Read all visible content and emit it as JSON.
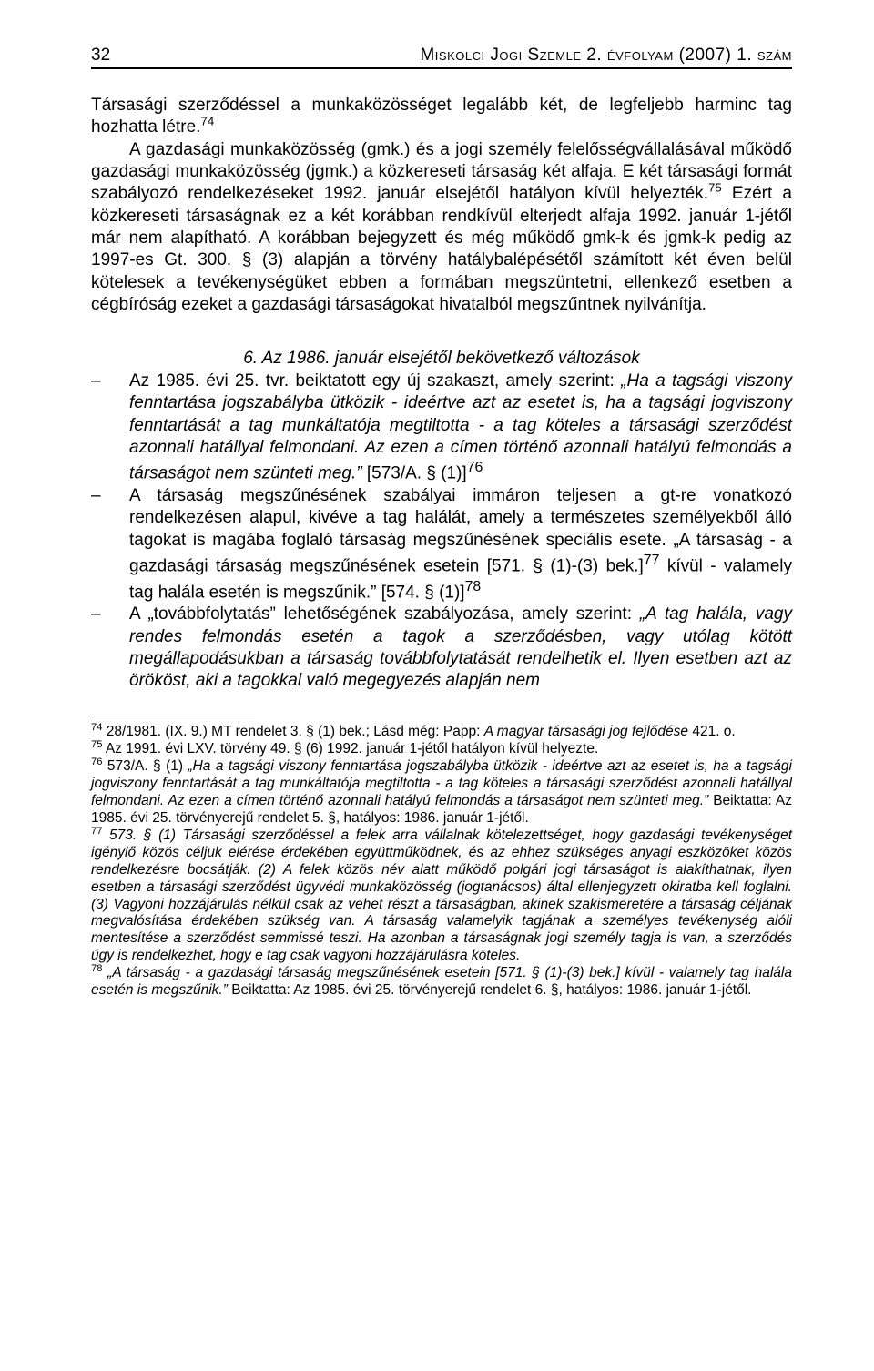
{
  "header": {
    "page_number": "32",
    "title": "Miskolci Jogi Szemle 2. évfolyam (2007) 1. szám"
  },
  "body": {
    "p1": "Társasági szerződéssel a munkaközösséget legalább két, de legfeljebb harminc tag hozhatta létre.",
    "p1_fn": "74",
    "p2": "A gazdasági munkaközösség (gmk.) és a jogi személy felelősségvállalásával működő gazdasági munkaközösség (jgmk.) a közkereseti társaság két alfaja. E két társasági formát szabályozó rendelkezéseket 1992. január elsejétől hatályon kívül helyezték.",
    "p2_fn": "75",
    "p2b": " Ezért a közkereseti társaságnak ez a két korábban rendkívül elterjedt alfaja 1992. január 1-jétől már nem alapítható. A korábban bejegyzett és még működő gmk-k és jgmk-k pedig az 1997-es Gt. 300. § (3) alapján a törvény hatálybalépésétől számított két éven belül kötelesek a tevékenységüket ebben a formában megszüntetni, ellenkező esetben a cégbíróság ezeket a gazdasági társaságokat hivatalból megszűntnek nyilvánítja."
  },
  "section_heading": "6. Az 1986. január elsejétől bekövetkező változások",
  "list": {
    "item1_a": "Az 1985. évi 25. tvr. beiktatott egy új szakaszt, amely szerint: ",
    "item1_quote": "„Ha a tagsági viszony fenntartása jogszabályba ütközik - ideértve azt az esetet is, ha a tagsági jogviszony fenntartását a tag munkáltatója megtiltotta - a tag köteles a társasági szerződést azonnali hatállyal felmondani. Az ezen a címen történő azonnali hatályú felmondás a társaságot nem szünteti meg.”",
    "item1_b": " [573/A. § (1)]",
    "item1_fn": "76",
    "item2_a": "A társaság megszűnésének szabályai immáron teljesen a gt-re vonatkozó rendelkezésen alapul, kivéve a tag halálát, amely a természetes személyekből álló tagokat is magába foglaló társaság megszűnésének speciális esete. „A társaság - a gazdasági társaság megszűnésének esetein [571. § (1)-(3) bek.]",
    "item2_fn77": "77",
    "item2_b": " kívül - valamely tag halála esetén is megszűnik.” [574. § (1)]",
    "item2_fn78": "78",
    "item3_a": "A „továbbfolytatás” lehetőségének szabályozása, amely szerint: ",
    "item3_quote": "„A tag halála, vagy rendes felmondás esetén a tagok a szerződésben, vagy utólag kötött megállapodásukban a társaság továbbfolytatását rendelhetik el. Ilyen esetben azt az örököst, aki a tagokkal való megegyezés alapján nem"
  },
  "footnotes": {
    "fn74_n": "74",
    "fn74_a": " 28/1981. (IX. 9.) MT rendelet 3. § (1) bek.; Lásd még: Papp: ",
    "fn74_it": "A magyar társasági jog fejlődése",
    "fn74_b": " 421. o.",
    "fn75_n": "75",
    "fn75": " Az 1991. évi LXV. törvény 49. § (6) 1992. január 1-jétől hatályon kívül helyezte.",
    "fn76_n": "76",
    "fn76_a": " 573/A. § (1) ",
    "fn76_it": "„Ha a tagsági viszony fenntartása jogszabályba ütközik - ideértve azt az esetet is, ha a tagsági jogviszony fenntartását a tag munkáltatója megtiltotta - a tag köteles a társasági szerződést azonnali hatállyal felmondani. Az ezen a címen történő azonnali hatályú felmondás a társaságot nem szünteti meg.”",
    "fn76_b": " Beiktatta: Az 1985. évi 25. törvényerejű rendelet 5. §, hatályos: 1986. január 1-jétől.",
    "fn77_n": "77",
    "fn77_it": " 573. § (1) Társasági szerződéssel a felek arra vállalnak kötelezettséget, hogy gazdasági tevékenységet igénylő közös céljuk elérése érdekében együttműködnek, és az ehhez szükséges anyagi eszközöket közös rendelkezésre bocsátják. (2) A felek közös név alatt működő polgári jogi társaságot is alakíthatnak, ilyen esetben a társasági szerződést ügyvédi munkaközösség (jogtanácsos) által ellenjegyzett okiratba kell foglalni. (3) Vagyoni hozzájárulás nélkül csak az vehet részt a társaságban, akinek szakismeretére a társaság céljának megvalósítása érdekében szükség van. A társaság valamelyik tagjának a személyes tevékenység alóli mentesítése a szerződést semmissé teszi. Ha azonban a társaságnak jogi személy tagja is van, a szerződés úgy is rendelkezhet, hogy e tag csak vagyoni hozzájárulásra köteles.",
    "fn78_n": "78",
    "fn78_it": " „A társaság - a gazdasági társaság megszűnésének esetein [571. § (1)-(3) bek.] kívül - valamely tag halála esetén is megszűnik.”",
    "fn78_b": " Beiktatta: Az 1985. évi 25. törvényerejű rendelet 6. §, hatályos: 1986. január 1-jétől."
  }
}
